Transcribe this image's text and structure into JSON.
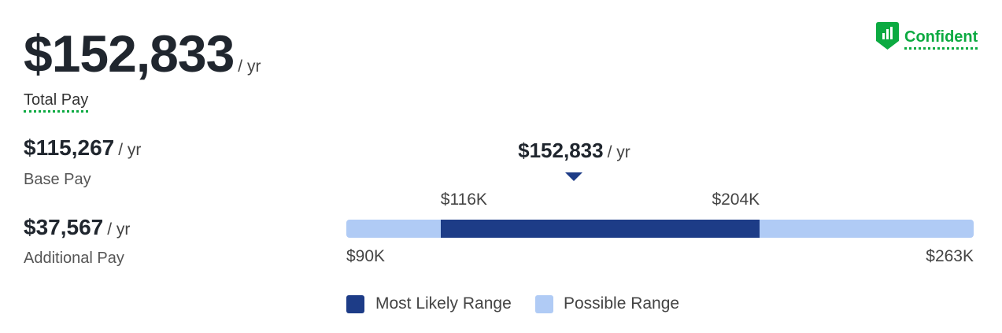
{
  "total_pay": {
    "amount": "$152,833",
    "unit": "/ yr",
    "label": "Total Pay"
  },
  "base_pay": {
    "amount": "$115,267",
    "unit": "/ yr",
    "label": "Base Pay"
  },
  "additional_pay": {
    "amount": "$37,567",
    "unit": "/ yr",
    "label": "Additional Pay"
  },
  "confidence": {
    "label": "Confident"
  },
  "range": {
    "marker": {
      "value": 152833,
      "label": "$152,833"
    },
    "marker_unit": "/ yr",
    "min": {
      "value": 90000,
      "label": "$90K"
    },
    "likely_low": {
      "value": 116000,
      "label": "$116K"
    },
    "likely_high": {
      "value": 204000,
      "label": "$204K"
    },
    "max": {
      "value": 263000,
      "label": "$263K"
    },
    "most_likely_color": "#1d3c87",
    "possible_color": "#b0cbf5"
  },
  "legend": {
    "most_likely": "Most Likely Range",
    "possible": "Possible Range"
  }
}
